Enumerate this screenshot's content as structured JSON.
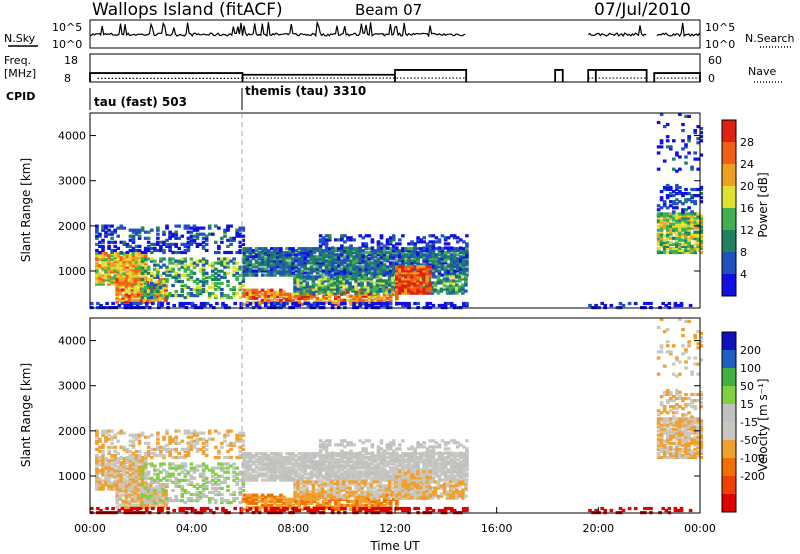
{
  "header": {
    "title": "Wallops Island (fitACF)",
    "beam": "Beam 07",
    "date": "07/Jul/2010"
  },
  "top_panels": {
    "nsky_label": "N.Sky",
    "nsearch_label": "N.Search",
    "freq_label_1": "Freq.",
    "freq_label_2": "[MHz]",
    "nave_label": "Nave",
    "cpid_label": "CPID",
    "noise_left_ticks": [
      "10^5",
      "10^0"
    ],
    "noise_right_ticks": [
      "10^5",
      "10^0"
    ],
    "freq_left_ticks": [
      "18",
      "8"
    ],
    "nave_right_ticks": [
      "60",
      "0"
    ],
    "cpid_segments": [
      {
        "label": "tau (fast) 503",
        "start_h": 0,
        "end_h": 6
      },
      {
        "label": "themis (tau) 3310",
        "start_h": 6,
        "end_h": 24
      }
    ]
  },
  "colors": {
    "power_scale": [
      "#1010e0",
      "#2050c0",
      "#208060",
      "#40b050",
      "#e0e030",
      "#f0a020",
      "#f06010",
      "#e02010"
    ],
    "velocity_scale": [
      "#e00000",
      "#f04000",
      "#f07000",
      "#f0a030",
      "#c8c8c0",
      "#c0c0c0",
      "#80d040",
      "#40b040",
      "#2060c0",
      "#1010c0"
    ]
  },
  "chart_data": [
    {
      "type": "heatmap",
      "name_panel": "power",
      "xlabel": "",
      "ylabel": "Slant Range [km]",
      "xlim": [
        0,
        24
      ],
      "ylim": [
        180,
        4500
      ],
      "yticks": [
        "1000",
        "2000",
        "3000",
        "4000"
      ],
      "colorbar_label": "Power [dB]",
      "colorbar_ticks": [
        "4",
        "8",
        "12",
        "16",
        "20",
        "24",
        "28"
      ],
      "clim": [
        0,
        30
      ]
    },
    {
      "type": "heatmap",
      "name_panel": "velocity",
      "xlabel": "Time UT",
      "ylabel": "Slant Range [km]",
      "xlim": [
        0,
        24
      ],
      "ylim": [
        180,
        4500
      ],
      "yticks": [
        "1000",
        "2000",
        "3000",
        "4000"
      ],
      "xticks": [
        "00:00",
        "04:00",
        "08:00",
        "12:00",
        "16:00",
        "20:00",
        "00:00"
      ],
      "colorbar_label": "Velocity [m s⁻¹]",
      "colorbar_ticks": [
        "200",
        "100",
        "50",
        "15",
        "-15",
        "-50",
        "-100",
        "-200"
      ]
    }
  ]
}
